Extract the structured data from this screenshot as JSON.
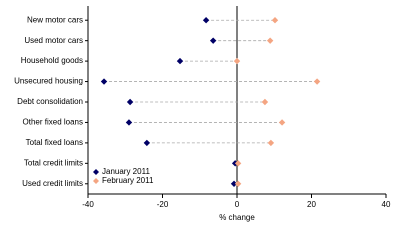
{
  "chart_data": {
    "type": "dot",
    "categories": [
      "New motor cars",
      "Used motor cars",
      "Household goods",
      "Unsecured housing",
      "Debt consolidation",
      "Other fixed loans",
      "Total fixed loans",
      "Total credit limits",
      "Used credit limits"
    ],
    "series": [
      {
        "name": "January 2011",
        "color": "#000066",
        "values": [
          -8.3,
          -6.4,
          -15.3,
          -35.7,
          -28.7,
          -29,
          -24.2,
          -0.5,
          -0.8
        ]
      },
      {
        "name": "February 2011",
        "color": "#f4a582",
        "values": [
          10.2,
          8.9,
          0,
          21.5,
          7.5,
          12.1,
          9.1,
          0.3,
          0.3
        ]
      }
    ],
    "xlabel": "% change",
    "xlim": [
      -40,
      40
    ],
    "xticks": [
      -40,
      -20,
      0,
      20,
      40
    ],
    "legend": "lower left"
  }
}
